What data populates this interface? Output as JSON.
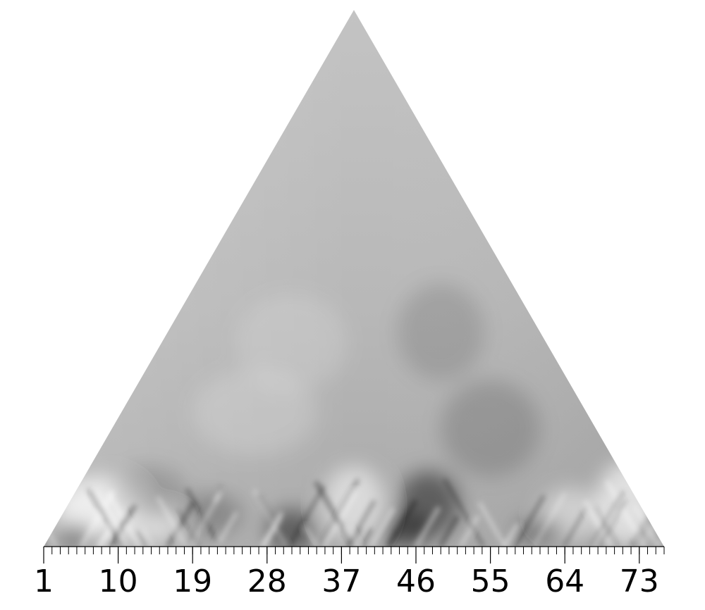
{
  "chart_data": {
    "type": "heatmap",
    "shape": "triangular",
    "colormap": "grayscale",
    "xlim": [
      1,
      75
    ],
    "tick_labels": [
      "1",
      "10",
      "19",
      "28",
      "37",
      "46",
      "55",
      "64",
      "73"
    ],
    "tick_values": [
      1,
      10,
      19,
      28,
      37,
      46,
      55,
      64,
      73
    ],
    "minor_tick_step": 1
  }
}
